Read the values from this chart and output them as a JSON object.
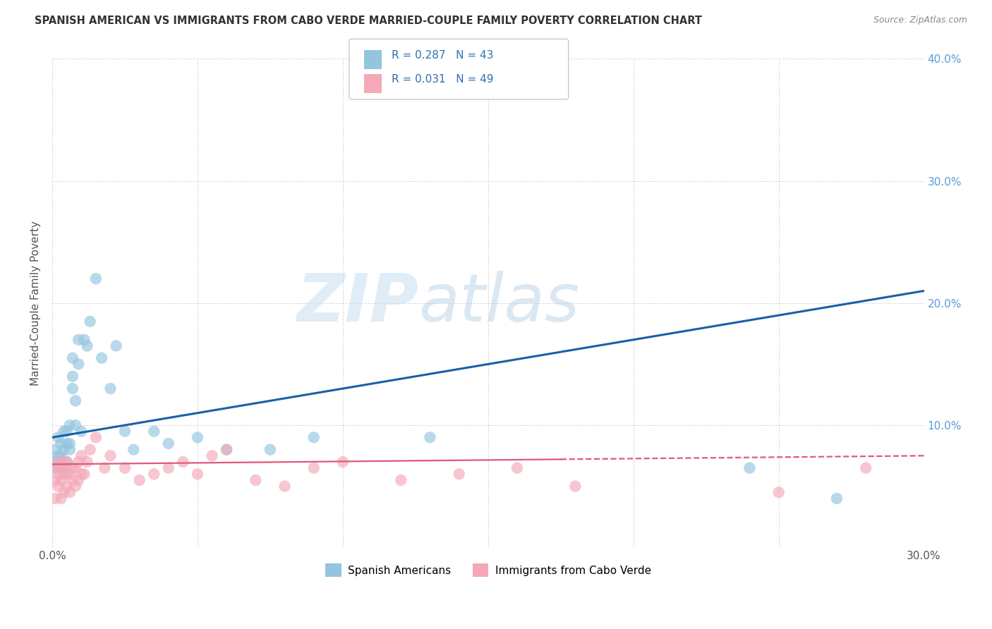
{
  "title": "SPANISH AMERICAN VS IMMIGRANTS FROM CABO VERDE MARRIED-COUPLE FAMILY POVERTY CORRELATION CHART",
  "source": "Source: ZipAtlas.com",
  "ylabel": "Married-Couple Family Poverty",
  "xlabel": "",
  "xlim": [
    0.0,
    0.3
  ],
  "ylim": [
    0.0,
    0.4
  ],
  "xticks": [
    0.0,
    0.05,
    0.1,
    0.15,
    0.2,
    0.25,
    0.3
  ],
  "yticks": [
    0.0,
    0.1,
    0.2,
    0.3,
    0.4
  ],
  "R1": 0.287,
  "N1": 43,
  "R2": 0.031,
  "N2": 49,
  "color_blue": "#92c5de",
  "color_pink": "#f4a8b8",
  "line_blue": "#1a5fa8",
  "line_pink": "#e05878",
  "background_color": "#ffffff",
  "watermark_zip": "ZIP",
  "watermark_atlas": "atlas",
  "legend_label1": "Spanish Americans",
  "legend_label2": "Immigrants from Cabo Verde",
  "blue_line_y0": 0.09,
  "blue_line_y1": 0.21,
  "pink_line_y0": 0.068,
  "pink_line_y1": 0.075,
  "spanish_x": [
    0.001,
    0.001,
    0.002,
    0.002,
    0.002,
    0.003,
    0.003,
    0.003,
    0.004,
    0.004,
    0.004,
    0.005,
    0.005,
    0.005,
    0.006,
    0.006,
    0.006,
    0.007,
    0.007,
    0.007,
    0.008,
    0.008,
    0.009,
    0.009,
    0.01,
    0.011,
    0.012,
    0.013,
    0.015,
    0.017,
    0.02,
    0.022,
    0.025,
    0.028,
    0.035,
    0.04,
    0.05,
    0.06,
    0.075,
    0.09,
    0.13,
    0.24,
    0.27
  ],
  "spanish_y": [
    0.07,
    0.08,
    0.065,
    0.075,
    0.09,
    0.07,
    0.085,
    0.075,
    0.065,
    0.08,
    0.095,
    0.07,
    0.085,
    0.095,
    0.1,
    0.08,
    0.085,
    0.13,
    0.14,
    0.155,
    0.1,
    0.12,
    0.15,
    0.17,
    0.095,
    0.17,
    0.165,
    0.185,
    0.22,
    0.155,
    0.13,
    0.165,
    0.095,
    0.08,
    0.095,
    0.085,
    0.09,
    0.08,
    0.08,
    0.09,
    0.09,
    0.065,
    0.04
  ],
  "caboverde_x": [
    0.001,
    0.001,
    0.001,
    0.002,
    0.002,
    0.002,
    0.003,
    0.003,
    0.003,
    0.004,
    0.004,
    0.004,
    0.005,
    0.005,
    0.005,
    0.006,
    0.006,
    0.007,
    0.007,
    0.008,
    0.008,
    0.009,
    0.009,
    0.01,
    0.01,
    0.011,
    0.012,
    0.013,
    0.015,
    0.018,
    0.02,
    0.025,
    0.03,
    0.035,
    0.04,
    0.045,
    0.05,
    0.055,
    0.06,
    0.07,
    0.08,
    0.09,
    0.1,
    0.12,
    0.14,
    0.16,
    0.18,
    0.25,
    0.28
  ],
  "caboverde_y": [
    0.04,
    0.055,
    0.065,
    0.05,
    0.06,
    0.07,
    0.04,
    0.055,
    0.065,
    0.045,
    0.06,
    0.07,
    0.05,
    0.06,
    0.07,
    0.045,
    0.06,
    0.055,
    0.065,
    0.05,
    0.065,
    0.055,
    0.07,
    0.06,
    0.075,
    0.06,
    0.07,
    0.08,
    0.09,
    0.065,
    0.075,
    0.065,
    0.055,
    0.06,
    0.065,
    0.07,
    0.06,
    0.075,
    0.08,
    0.055,
    0.05,
    0.065,
    0.07,
    0.055,
    0.06,
    0.065,
    0.05,
    0.045,
    0.065
  ]
}
